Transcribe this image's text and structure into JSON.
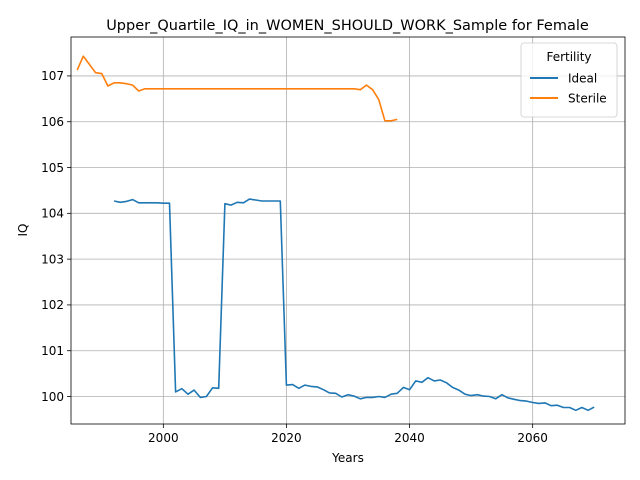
{
  "chart_data": {
    "type": "line",
    "title": "Upper_Quartile_IQ_in_WOMEN_SHOULD_WORK_Sample for Female",
    "xlabel": "Years",
    "ylabel": "IQ",
    "xlim": [
      1985,
      2075
    ],
    "ylim": [
      99.4,
      107.85
    ],
    "xticks": [
      2000,
      2020,
      2040,
      2060
    ],
    "yticks": [
      100,
      101,
      102,
      103,
      104,
      105,
      106,
      107
    ],
    "grid": true,
    "legend": {
      "title": "Fertility",
      "placement": "top-right"
    },
    "series": [
      {
        "name": "Ideal",
        "color": "#1f77b4",
        "x": [
          1992,
          1993,
          1994,
          1995,
          1996,
          1997,
          1998,
          1999,
          2000,
          2001,
          2002,
          2003,
          2004,
          2005,
          2006,
          2007,
          2008,
          2009,
          2010,
          2011,
          2012,
          2013,
          2014,
          2015,
          2016,
          2017,
          2018,
          2019,
          2020,
          2021,
          2022,
          2023,
          2024,
          2025,
          2026,
          2027,
          2028,
          2029,
          2030,
          2031,
          2032,
          2033,
          2034,
          2035,
          2036,
          2037,
          2038,
          2039,
          2040,
          2041,
          2042,
          2043,
          2044,
          2045,
          2046,
          2047,
          2048,
          2049,
          2050,
          2051,
          2052,
          2053,
          2054,
          2055,
          2056,
          2057,
          2058,
          2059,
          2060,
          2061,
          2062,
          2063,
          2064,
          2065,
          2066,
          2067,
          2068,
          2069,
          2070
        ],
        "y": [
          104.27,
          104.24,
          104.26,
          104.3,
          104.23,
          104.23,
          104.23,
          104.23,
          104.22,
          104.22,
          100.1,
          100.17,
          100.05,
          100.14,
          99.98,
          100.0,
          100.19,
          100.18,
          104.21,
          104.18,
          104.24,
          104.23,
          104.31,
          104.29,
          104.27,
          104.27,
          104.27,
          104.27,
          100.25,
          100.26,
          100.18,
          100.25,
          100.22,
          100.21,
          100.15,
          100.08,
          100.07,
          99.99,
          100.04,
          100.01,
          99.95,
          99.98,
          99.98,
          100.0,
          99.98,
          100.05,
          100.07,
          100.2,
          100.15,
          100.34,
          100.31,
          100.41,
          100.34,
          100.36,
          100.3,
          100.2,
          100.14,
          100.05,
          100.02,
          100.04,
          100.01,
          100.0,
          99.95,
          100.04,
          99.97,
          99.94,
          99.91,
          99.9,
          99.87,
          99.85,
          99.86,
          99.8,
          99.81,
          99.76,
          99.76,
          99.7,
          99.76,
          99.7,
          99.77
        ]
      },
      {
        "name": "Sterile",
        "color": "#ff7f0e",
        "x": [
          1986,
          1987,
          1988,
          1989,
          1990,
          1991,
          1992,
          1993,
          1994,
          1995,
          1996,
          1997,
          1998,
          1999,
          2000,
          2001,
          2002,
          2003,
          2004,
          2005,
          2006,
          2007,
          2008,
          2009,
          2010,
          2011,
          2012,
          2013,
          2014,
          2015,
          2016,
          2017,
          2018,
          2019,
          2020,
          2021,
          2022,
          2023,
          2024,
          2025,
          2026,
          2027,
          2028,
          2029,
          2030,
          2031,
          2032,
          2033,
          2034,
          2035,
          2036,
          2037,
          2038
        ],
        "y": [
          107.13,
          107.43,
          107.25,
          107.07,
          107.05,
          106.78,
          106.85,
          106.85,
          106.83,
          106.8,
          106.67,
          106.72,
          106.72,
          106.72,
          106.72,
          106.72,
          106.72,
          106.72,
          106.72,
          106.72,
          106.72,
          106.72,
          106.72,
          106.72,
          106.72,
          106.72,
          106.72,
          106.72,
          106.72,
          106.72,
          106.72,
          106.72,
          106.72,
          106.72,
          106.72,
          106.72,
          106.72,
          106.72,
          106.72,
          106.72,
          106.72,
          106.72,
          106.72,
          106.72,
          106.72,
          106.72,
          106.7,
          106.8,
          106.7,
          106.48,
          106.02,
          106.02,
          106.05
        ]
      }
    ]
  }
}
